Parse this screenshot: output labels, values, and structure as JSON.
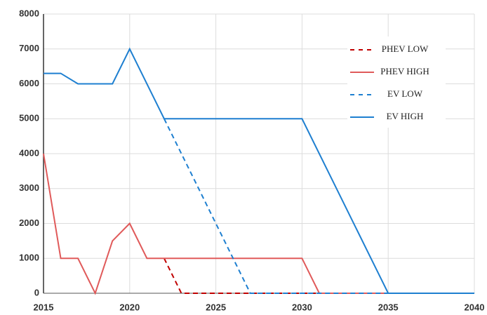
{
  "chart_data": {
    "type": "line",
    "xlim": [
      2015,
      2040
    ],
    "xticks": [
      2015,
      2020,
      2025,
      2030,
      2035,
      2040
    ],
    "ylim": [
      0,
      8000
    ],
    "yticks": [
      0,
      1000,
      2000,
      3000,
      4000,
      5000,
      6000,
      7000,
      8000
    ],
    "grid": true,
    "legend": "upper right",
    "series": [
      {
        "name": "PHEV LOW",
        "color": "#c00000",
        "dashed": true,
        "x": [
          2022,
          2023,
          2040
        ],
        "values": [
          1000,
          0,
          0
        ]
      },
      {
        "name": "PHEV HIGH",
        "color": "#e05a5a",
        "dashed": false,
        "x": [
          2015,
          2016,
          2017,
          2018,
          2019,
          2020,
          2021,
          2030,
          2031,
          2040
        ],
        "values": [
          4000,
          1000,
          1000,
          0,
          1500,
          2000,
          1000,
          1000,
          0,
          0
        ]
      },
      {
        "name": "EV LOW",
        "color": "#1e7fd0",
        "dashed": true,
        "x": [
          2022,
          2027,
          2040
        ],
        "values": [
          5000,
          0,
          0
        ]
      },
      {
        "name": "EV HIGH",
        "color": "#1e7fd0",
        "dashed": false,
        "x": [
          2015,
          2016,
          2017,
          2019,
          2020,
          2022,
          2030,
          2035,
          2040
        ],
        "values": [
          6300,
          6300,
          6000,
          6000,
          7000,
          5000,
          5000,
          0,
          0
        ]
      }
    ]
  }
}
